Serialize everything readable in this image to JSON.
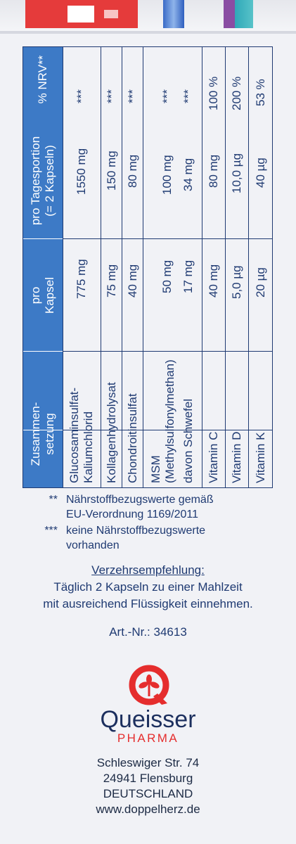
{
  "table": {
    "headers": {
      "composition": "Zusammen-\nsetzung",
      "per_capsule": "pro\nKapsel",
      "per_day": "pro Tagesportion\n(= 2 Kapseln)",
      "nrv": "% NRV**"
    },
    "rows": [
      {
        "name": "Glucosaminsulfat-\nKaliumchlorid",
        "capsule": "775 mg",
        "day": "1550 mg",
        "nrv": "***"
      },
      {
        "name": "Kollagenhydrolysat",
        "capsule": "75 mg",
        "day": "150 mg",
        "nrv": "***"
      },
      {
        "name": "Chondroitinsulfat",
        "capsule": "40 mg",
        "day": "80 mg",
        "nrv": "***"
      },
      {
        "name": "MSM\n(Methylsulfonylmethan)",
        "capsule": "50 mg",
        "day": "100 mg",
        "nrv": "***"
      },
      {
        "name": "davon Schwefel",
        "capsule": "17 mg",
        "day": "34 mg",
        "nrv": "***"
      },
      {
        "name": "Vitamin C",
        "capsule": "40 mg",
        "day": "80 mg",
        "nrv": "100 %"
      },
      {
        "name": "Vitamin D",
        "capsule": "5,0 µg",
        "day": "10,0 µg",
        "nrv": "200 %"
      },
      {
        "name": "Vitamin K",
        "capsule": "20 µg",
        "day": "40 µg",
        "nrv": "53 %"
      }
    ]
  },
  "notes": [
    {
      "mark": "**",
      "text": "Nährstoffbezugswerte gemäß\nEU-Verordnung 1169/2011"
    },
    {
      "mark": "***",
      "text": "keine Nährstoffbezugswerte\nvorhanden"
    }
  ],
  "recommendation": {
    "title": "Verzehrsempfehlung:",
    "line1": "Täglich 2 Kapseln zu einer Mahlzeit",
    "line2": "mit ausreichend Flüssigkeit einnehmen."
  },
  "article": "Art.-Nr.: 34613",
  "brand": {
    "name": "Queisser",
    "sub": "PHARMA"
  },
  "address": {
    "street": "Schleswiger Str. 74",
    "city": "24941 Flensburg",
    "country": "DEUTSCHLAND",
    "web": "www.doppelherz.de"
  },
  "colors": {
    "text": "#1f3a72",
    "header": "#3d7ac6",
    "logo_red": "#e52d2d"
  }
}
